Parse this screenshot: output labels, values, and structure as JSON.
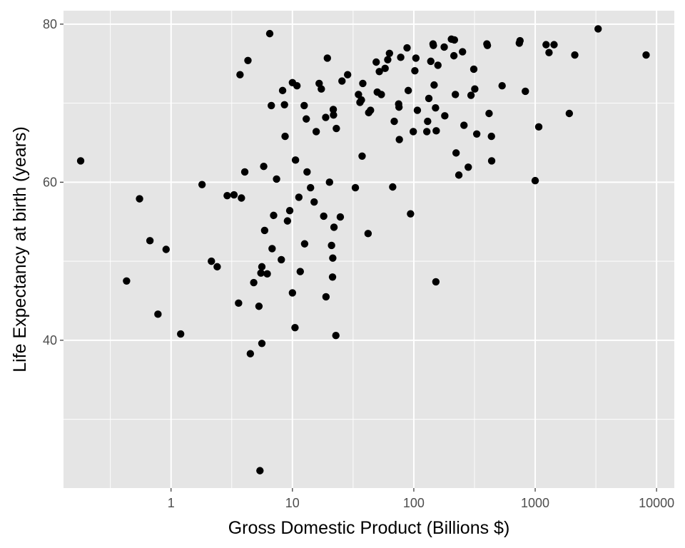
{
  "chart_data": {
    "type": "scatter",
    "xlabel": "Gross Domestic Product (Billions $)",
    "ylabel": "Life Expectancy at birth (years)",
    "x_scale": "log10",
    "xlim": [
      0.13,
      14000
    ],
    "ylim": [
      21.3,
      81.7
    ],
    "x_ticks": [
      1,
      10,
      100,
      1000,
      10000
    ],
    "x_tick_labels": [
      "1",
      "10",
      "100",
      "1000",
      "10000"
    ],
    "y_ticks": [
      40,
      60,
      80
    ],
    "y_tick_labels": [
      "40",
      "60",
      "80"
    ],
    "grid": true,
    "legend": "none",
    "colors": {
      "panel": "#e5e5e5",
      "grid": "#ffffff",
      "point": "#000000",
      "tick_text": "#4d4d4d",
      "axis_title": "#000000"
    },
    "points": [
      [
        0.18,
        62.7
      ],
      [
        0.43,
        47.5
      ],
      [
        0.55,
        57.9
      ],
      [
        0.67,
        52.6
      ],
      [
        0.78,
        43.3
      ],
      [
        0.91,
        51.5
      ],
      [
        1.2,
        40.8
      ],
      [
        1.8,
        59.7
      ],
      [
        2.15,
        50.0
      ],
      [
        2.4,
        49.3
      ],
      [
        2.9,
        58.3
      ],
      [
        3.3,
        58.4
      ],
      [
        3.6,
        44.7
      ],
      [
        3.7,
        73.6
      ],
      [
        3.8,
        58.0
      ],
      [
        4.05,
        61.3
      ],
      [
        4.3,
        75.4
      ],
      [
        4.5,
        38.3
      ],
      [
        4.8,
        47.3
      ],
      [
        5.3,
        44.3
      ],
      [
        5.4,
        23.5
      ],
      [
        5.5,
        48.5
      ],
      [
        5.6,
        49.3
      ],
      [
        5.6,
        39.6
      ],
      [
        5.8,
        62.0
      ],
      [
        5.9,
        53.9
      ],
      [
        6.2,
        48.4
      ],
      [
        6.5,
        78.8
      ],
      [
        6.7,
        69.7
      ],
      [
        6.8,
        51.6
      ],
      [
        7.0,
        55.8
      ],
      [
        7.4,
        60.4
      ],
      [
        8.1,
        50.2
      ],
      [
        8.3,
        71.6
      ],
      [
        8.6,
        69.8
      ],
      [
        8.7,
        65.8
      ],
      [
        9.1,
        55.1
      ],
      [
        9.5,
        56.4
      ],
      [
        10.0,
        72.6
      ],
      [
        10.0,
        46.0
      ],
      [
        10.5,
        41.6
      ],
      [
        10.6,
        62.8
      ],
      [
        10.9,
        72.2
      ],
      [
        11.3,
        58.1
      ],
      [
        11.6,
        48.7
      ],
      [
        12.5,
        69.7
      ],
      [
        12.6,
        52.2
      ],
      [
        13.0,
        68.0
      ],
      [
        13.2,
        61.3
      ],
      [
        14.1,
        59.3
      ],
      [
        15.1,
        57.5
      ],
      [
        15.7,
        66.4
      ],
      [
        16.6,
        72.5
      ],
      [
        17.3,
        71.8
      ],
      [
        18.1,
        55.7
      ],
      [
        18.8,
        68.2
      ],
      [
        18.9,
        45.5
      ],
      [
        19.4,
        75.7
      ],
      [
        20.2,
        60.0
      ],
      [
        21.0,
        52.0
      ],
      [
        21.4,
        48.0
      ],
      [
        21.5,
        50.4
      ],
      [
        21.7,
        69.2
      ],
      [
        21.8,
        68.5
      ],
      [
        22.0,
        54.3
      ],
      [
        22.8,
        40.6
      ],
      [
        23.0,
        66.8
      ],
      [
        24.8,
        55.6
      ],
      [
        25.6,
        72.8
      ],
      [
        28.5,
        73.6
      ],
      [
        33.0,
        59.3
      ],
      [
        35.0,
        71.1
      ],
      [
        36.0,
        70.1
      ],
      [
        37.0,
        70.4
      ],
      [
        37.5,
        63.3
      ],
      [
        38.0,
        72.5
      ],
      [
        42.0,
        53.5
      ],
      [
        42.5,
        68.8
      ],
      [
        44.0,
        69.1
      ],
      [
        49.0,
        75.2
      ],
      [
        50.0,
        71.4
      ],
      [
        52.0,
        74.0
      ],
      [
        54.0,
        71.1
      ],
      [
        58.0,
        74.4
      ],
      [
        61.0,
        75.5
      ],
      [
        63.0,
        76.3
      ],
      [
        67.0,
        59.4
      ],
      [
        69.0,
        67.7
      ],
      [
        75.0,
        69.9
      ],
      [
        75.5,
        69.5
      ],
      [
        76.0,
        65.4
      ],
      [
        78.0,
        75.8
      ],
      [
        88.0,
        77.0
      ],
      [
        90.0,
        71.6
      ],
      [
        94.0,
        56.0
      ],
      [
        99.0,
        66.4
      ],
      [
        102.0,
        74.1
      ],
      [
        104.0,
        75.7
      ],
      [
        107.0,
        69.1
      ],
      [
        128.0,
        66.4
      ],
      [
        130.0,
        67.7
      ],
      [
        133.0,
        70.6
      ],
      [
        138.0,
        75.3
      ],
      [
        144.0,
        77.5
      ],
      [
        145.0,
        77.3
      ],
      [
        147.0,
        72.3
      ],
      [
        151.0,
        69.4
      ],
      [
        152.0,
        47.4
      ],
      [
        153.0,
        66.5
      ],
      [
        158.0,
        74.8
      ],
      [
        178.0,
        77.1
      ],
      [
        180.0,
        68.4
      ],
      [
        204.0,
        78.1
      ],
      [
        214.0,
        76.0
      ],
      [
        216.0,
        78.0
      ],
      [
        220.0,
        71.1
      ],
      [
        223.0,
        63.7
      ],
      [
        235.0,
        60.9
      ],
      [
        252.0,
        76.5
      ],
      [
        259.0,
        67.2
      ],
      [
        281.0,
        61.9
      ],
      [
        296.0,
        71.0
      ],
      [
        312.0,
        74.3
      ],
      [
        318.0,
        71.8
      ],
      [
        330.0,
        66.1
      ],
      [
        400.0,
        77.5
      ],
      [
        404.0,
        77.3
      ],
      [
        417.0,
        68.7
      ],
      [
        436.0,
        65.8
      ],
      [
        438.0,
        62.7
      ],
      [
        534.0,
        72.2
      ],
      [
        740.0,
        77.6
      ],
      [
        750.0,
        77.9
      ],
      [
        830.0,
        71.5
      ],
      [
        1000.0,
        60.2
      ],
      [
        1070.0,
        67.0
      ],
      [
        1230.0,
        77.4
      ],
      [
        1300.0,
        76.4
      ],
      [
        1430.0,
        77.4
      ],
      [
        1910.0,
        68.7
      ],
      [
        2120.0,
        76.1
      ],
      [
        3300.0,
        79.4
      ],
      [
        8200.0,
        76.1
      ]
    ]
  }
}
